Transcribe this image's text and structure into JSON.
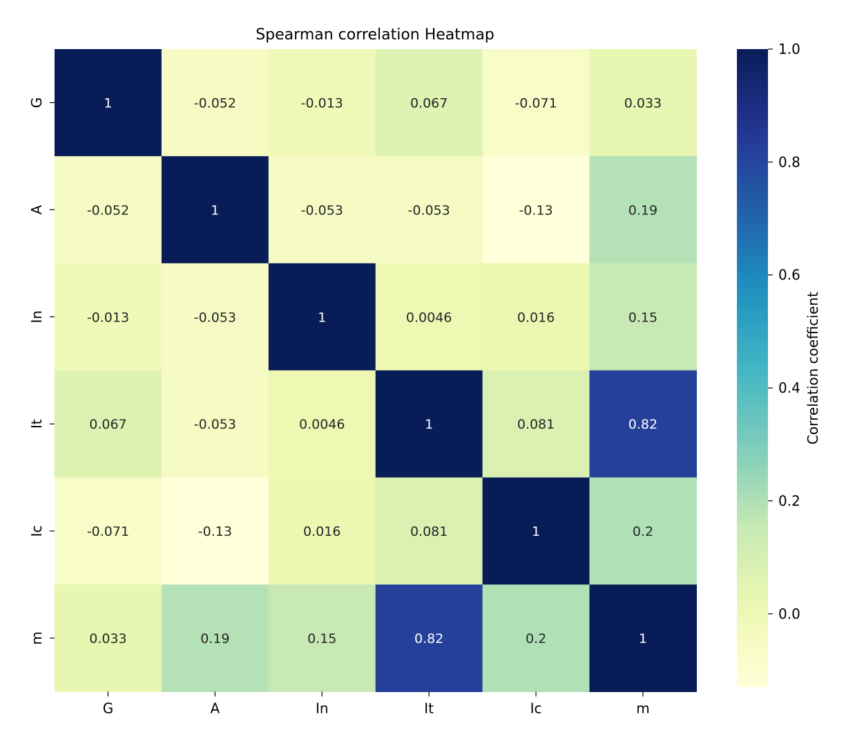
{
  "chart_data": {
    "type": "heatmap",
    "title": "Spearman correlation Heatmap",
    "rows": [
      "G",
      "A",
      "In",
      "It",
      "Ic",
      "m"
    ],
    "cols": [
      "G",
      "A",
      "In",
      "It",
      "Ic",
      "m"
    ],
    "values": [
      [
        1,
        -0.052,
        -0.013,
        0.067,
        -0.071,
        0.033
      ],
      [
        -0.052,
        1,
        -0.053,
        -0.053,
        -0.13,
        0.19
      ],
      [
        -0.013,
        -0.053,
        1,
        0.0046,
        0.016,
        0.15
      ],
      [
        0.067,
        -0.053,
        0.0046,
        1,
        0.081,
        0.82
      ],
      [
        -0.071,
        -0.13,
        0.016,
        0.081,
        1,
        0.2
      ],
      [
        0.033,
        0.19,
        0.15,
        0.82,
        0.2,
        1
      ]
    ],
    "annotations": [
      [
        "1",
        "-0.052",
        "-0.013",
        "0.067",
        "-0.071",
        "0.033"
      ],
      [
        "-0.052",
        "1",
        "-0.053",
        "-0.053",
        "-0.13",
        "0.19"
      ],
      [
        "-0.013",
        "-0.053",
        "1",
        "0.0046",
        "0.016",
        "0.15"
      ],
      [
        "0.067",
        "-0.053",
        "0.0046",
        "1",
        "0.081",
        "0.82"
      ],
      [
        "-0.071",
        "-0.13",
        "0.016",
        "0.081",
        "1",
        "0.2"
      ],
      [
        "0.033",
        "0.19",
        "0.15",
        "0.82",
        "0.2",
        "1"
      ]
    ],
    "colormap": "YlGnBu",
    "color_range": [
      -0.13,
      1.0
    ],
    "colorbar": {
      "label": "Correlation coefficient",
      "ticks": [
        0.0,
        0.2,
        0.4,
        0.6,
        0.8,
        1.0
      ],
      "tick_labels": [
        "0.0",
        "0.2",
        "0.4",
        "0.6",
        "0.8",
        "1.0"
      ]
    }
  }
}
